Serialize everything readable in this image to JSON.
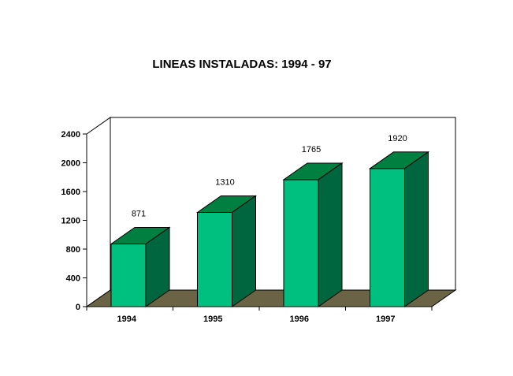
{
  "chart_data": {
    "type": "bar",
    "title": "LINEAS INSTALADAS: 1994 - 97",
    "categories": [
      "1994",
      "1995",
      "1996",
      "1997"
    ],
    "values": [
      871,
      1310,
      1765,
      1920
    ],
    "data_labels": [
      "871",
      "1310",
      "1765",
      "1920"
    ],
    "yticks": [
      "0",
      "400",
      "800",
      "1200",
      "1600",
      "2000",
      "2400"
    ],
    "ylim": [
      0,
      2400
    ],
    "grid": false,
    "legend": "none",
    "style": "3d",
    "colors": {
      "bar_front": "#00c07f",
      "bar_top": "#008040",
      "bar_side": "#006640",
      "floor": "#6b6444",
      "outline": "#000000"
    }
  }
}
